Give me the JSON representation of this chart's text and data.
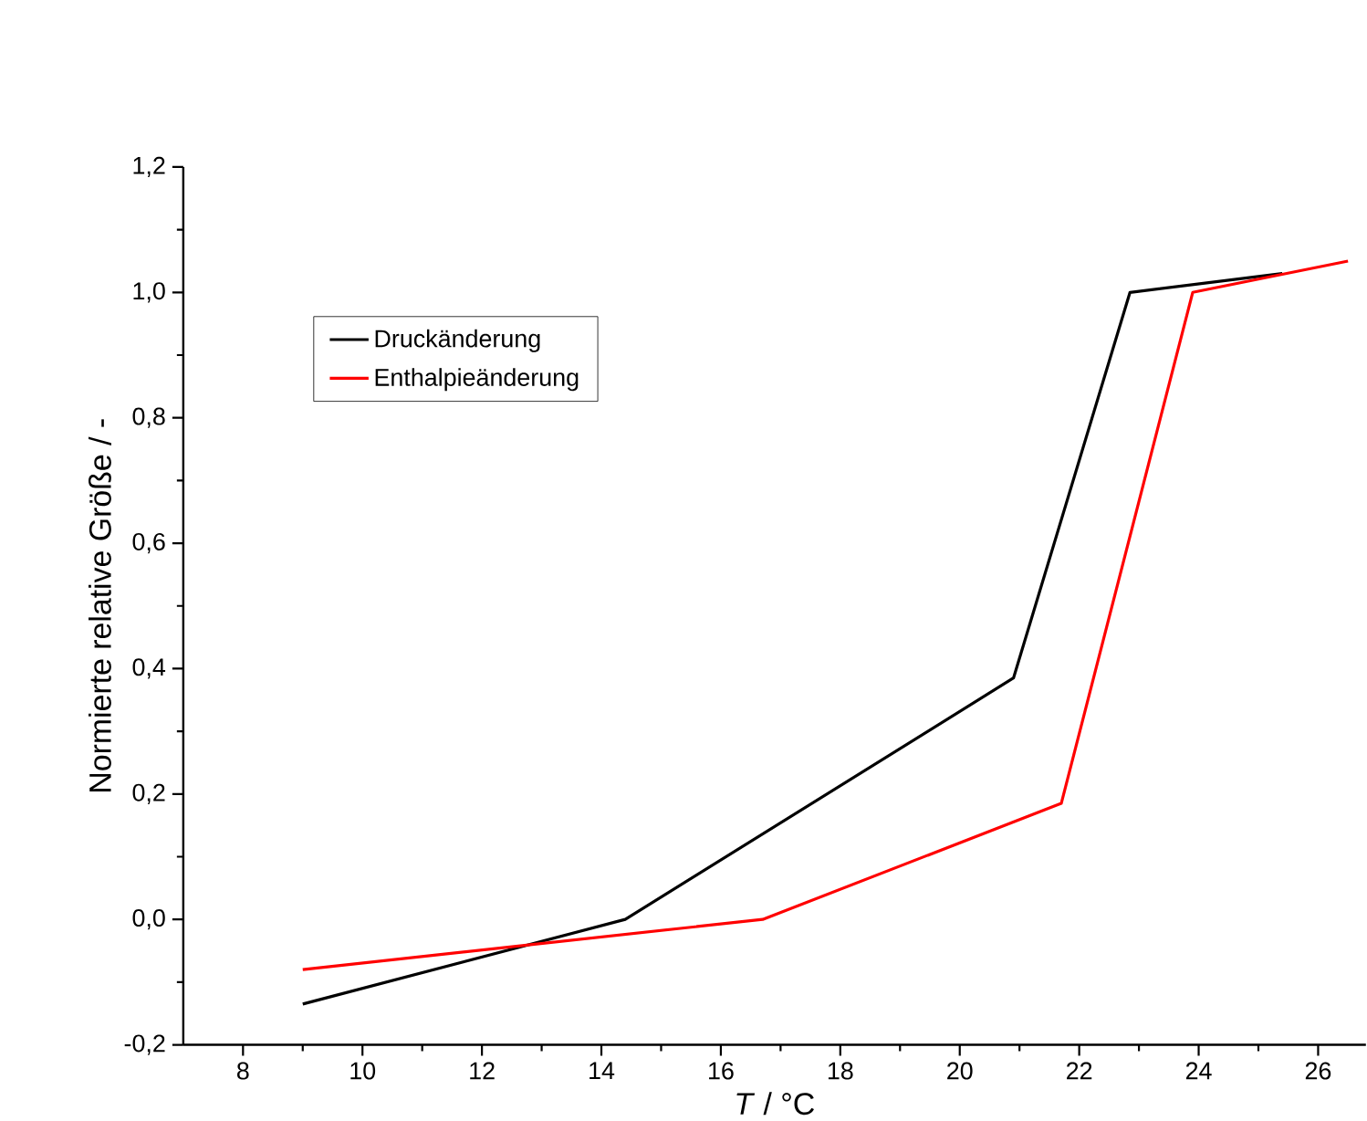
{
  "chart_data": {
    "type": "line",
    "xlabel": "*T* / °C",
    "ylabel": "Normierte relative Größe / -",
    "xlim": [
      7,
      26.8
    ],
    "ylim": [
      -0.2,
      1.2
    ],
    "xticks": [
      8,
      10,
      12,
      14,
      16,
      18,
      20,
      22,
      24,
      26
    ],
    "yticks": [
      {
        "value": -0.2,
        "label": "-0,2"
      },
      {
        "value": 0,
        "label": "0,0"
      },
      {
        "value": 0.2,
        "label": "0,2"
      },
      {
        "value": 0.4,
        "label": "0,4"
      },
      {
        "value": 0.6,
        "label": "0,6"
      },
      {
        "value": 0.8,
        "label": "0,8"
      },
      {
        "value": 1.0,
        "label": "1,0"
      },
      {
        "value": 1.2,
        "label": "1,2"
      }
    ],
    "grid": false,
    "legend": "top left",
    "marker": "none",
    "line_style": "solid",
    "series": [
      {
        "name": "Druckänderung",
        "color": "#000000",
        "x": [
          9,
          14.4,
          20.9,
          22.85,
          25.4
        ],
        "values": [
          -0.135,
          0.0,
          0.385,
          1.0,
          1.03
        ]
      },
      {
        "name": "Enthalpieänderung",
        "color": "#ff0000",
        "x": [
          9,
          16.7,
          21.7,
          23.9,
          26.5
        ],
        "values": [
          -0.08,
          0.0,
          0.185,
          1.0,
          1.05
        ]
      }
    ]
  }
}
